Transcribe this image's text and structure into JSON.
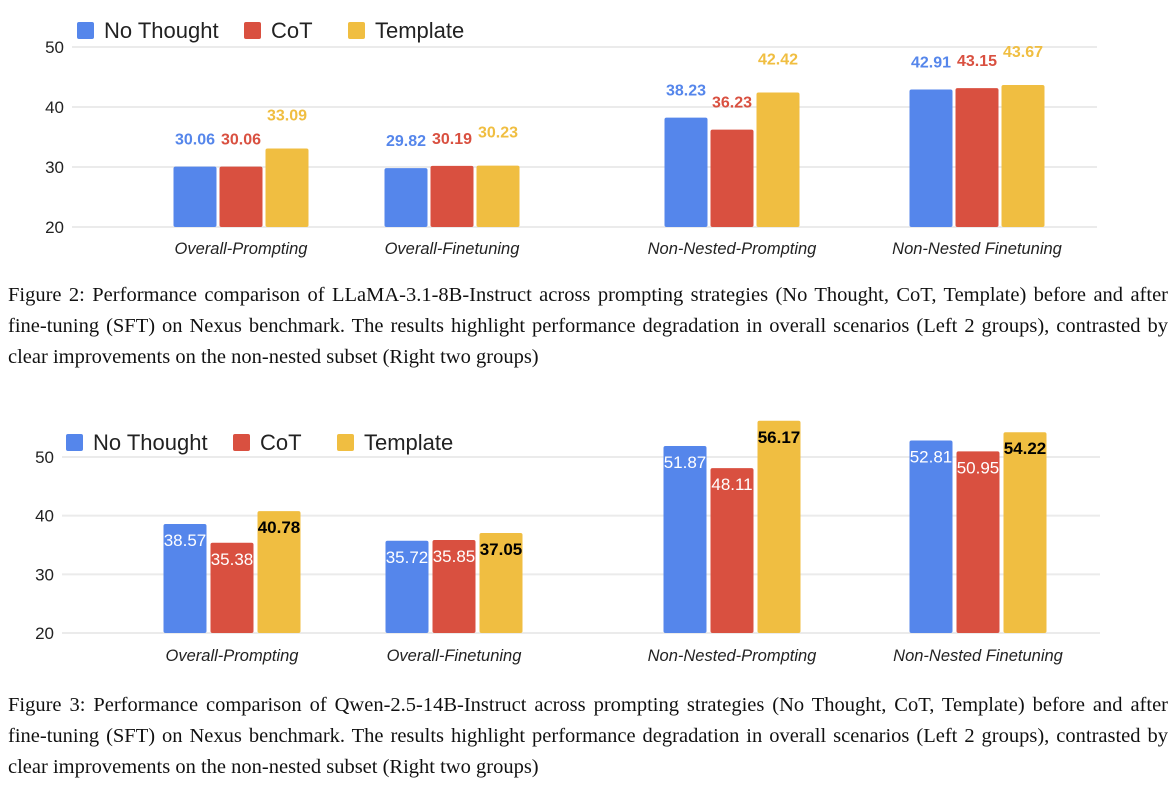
{
  "colors": {
    "No Thought": "#5586EB",
    "CoT": "#D95040",
    "Template": "#F0BE41",
    "grid": "#EBEBEB"
  },
  "chart_data": [
    {
      "type": "bar",
      "title": "",
      "xlabel": "",
      "ylabel": "",
      "ylim": [
        20,
        50
      ],
      "yticks": [
        20,
        30,
        40,
        50
      ],
      "grid": true,
      "legend": {
        "position": "top-left",
        "entries": [
          "No Thought",
          "CoT",
          "Template"
        ]
      },
      "categories": [
        "Overall-Prompting",
        "Overall-Finetuning",
        "Non-Nested-Prompting",
        "Non-Nested Finetuning"
      ],
      "series": [
        {
          "name": "No Thought",
          "values": [
            30.06,
            29.82,
            38.23,
            42.91
          ]
        },
        {
          "name": "CoT",
          "values": [
            30.06,
            30.19,
            36.23,
            43.15
          ]
        },
        {
          "name": "Template",
          "values": [
            33.09,
            30.23,
            42.42,
            43.67
          ]
        }
      ],
      "data_labels": {
        "style": "above-bar-colored",
        "No Thought": [
          "30.06",
          "29.82",
          "38.23",
          "42.91"
        ],
        "CoT": [
          "30.06",
          "30.19",
          "36.23",
          "43.15"
        ],
        "Template": [
          "33.09",
          "30.23",
          "42.42",
          "43.67"
        ]
      }
    },
    {
      "type": "bar",
      "title": "",
      "xlabel": "",
      "ylabel": "",
      "ylim": [
        20,
        56
      ],
      "yticks": [
        20,
        30,
        40,
        50
      ],
      "grid": true,
      "legend": {
        "position": "top-left",
        "entries": [
          "No Thought",
          "CoT",
          "Template"
        ]
      },
      "categories": [
        "Overall-Prompting",
        "Overall-Finetuning",
        "Non-Nested-Prompting",
        "Non-Nested Finetuning"
      ],
      "series": [
        {
          "name": "No Thought",
          "values": [
            38.57,
            35.72,
            51.87,
            52.81
          ]
        },
        {
          "name": "CoT",
          "values": [
            35.38,
            35.85,
            48.11,
            50.95
          ]
        },
        {
          "name": "Template",
          "values": [
            40.78,
            37.05,
            56.17,
            54.22
          ]
        }
      ],
      "data_labels": {
        "style": "inside-bar",
        "No Thought": [
          "38.57",
          "35.72",
          "51.87",
          "52.81"
        ],
        "CoT": [
          "35.38",
          "35.85",
          "48.11",
          "50.95"
        ],
        "Template": [
          "40.78",
          "37.05",
          "56.17",
          "54.22"
        ]
      }
    }
  ],
  "captions": {
    "fig2": "Figure 2: Performance comparison of LLaMA-3.1-8B-Instruct across prompting strategies (No Thought, CoT, Template) before and after fine-tuning (SFT) on Nexus benchmark. The results highlight performance degradation in overall scenarios (Left 2 groups), contrasted by clear improvements on the non-nested subset (Right two groups)",
    "fig3": "Figure 3: Performance comparison of Qwen-2.5-14B-Instruct across prompting strategies (No Thought, CoT, Template) before and after fine-tuning (SFT) on Nexus benchmark. The results highlight performance degradation in overall scenarios (Left 2 groups), contrasted by clear improvements on the non-nested subset (Right two groups)"
  }
}
